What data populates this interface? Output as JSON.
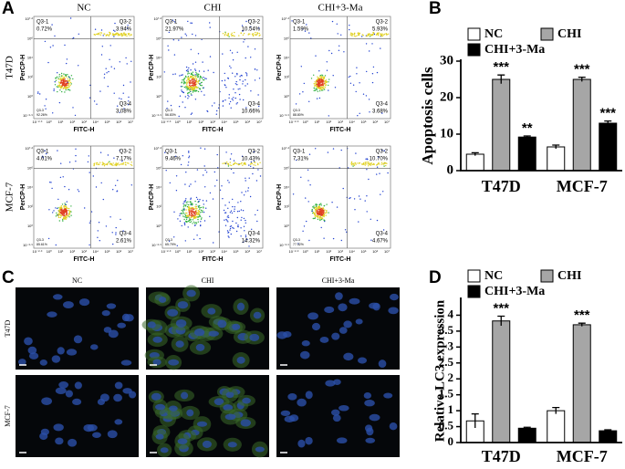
{
  "panel_letters": [
    "A",
    "B",
    "C",
    "D"
  ],
  "flow_panel": {
    "columns": [
      "NC",
      "CHI",
      "CHI+3-Ma"
    ],
    "rows": [
      "T47D",
      "MCF-7"
    ],
    "x_axis_label": "FITC-H",
    "y_axis_label": "PerCP-H",
    "x_tick_labels": [
      "10⁻²·⁹",
      "10⁰",
      "10¹",
      "10²",
      "10³",
      "10⁴",
      "10⁵",
      "10⁶",
      "10⁷"
    ],
    "y_tick_labels": [
      "10⁻²·⁹",
      "10⁰",
      "10²",
      "10⁴",
      "10⁶",
      "10⁷·²"
    ],
    "quadrant_names": [
      "Q3-1",
      "Q3-2",
      "Q3-3",
      "Q3-4"
    ],
    "plots": [
      [
        [
          "0.72%",
          "3.94%",
          "92.26%",
          "3.08%"
        ],
        [
          "21.97%",
          "10.54%",
          "56.83%",
          "10.66%"
        ],
        [
          "1.59%",
          "5.93%",
          "88.80%",
          "3.68%"
        ]
      ],
      [
        [
          "4.61%",
          "7.17%",
          "85.61%",
          "2.61%"
        ],
        [
          "9.46%",
          "10.43%",
          "65.79%",
          "14.32%"
        ],
        [
          "7.31%",
          "10.70%",
          "77.32%",
          "4.67%"
        ]
      ]
    ]
  },
  "image_panel": {
    "columns": [
      "NC",
      "CHI",
      "CHI+3-Ma"
    ],
    "rows": [
      "T47D",
      "MCF-7"
    ]
  },
  "chart_data": [
    {
      "type": "bar",
      "y_axis_label": "Apoptosis cells",
      "categories": [
        "T47D",
        "MCF-7"
      ],
      "ylim": [
        0,
        30
      ],
      "yticks": [
        0,
        10,
        20,
        30
      ],
      "series": [
        {
          "name": "NC",
          "color": "#ffffff",
          "values": [
            4.5,
            6.5
          ],
          "errors": [
            0.4,
            0.5
          ],
          "annotations": [
            null,
            null
          ]
        },
        {
          "name": "CHI",
          "color": "#a6a6a6",
          "values": [
            25,
            25
          ],
          "errors": [
            1.2,
            0.6
          ],
          "annotations": [
            "***",
            "***"
          ]
        },
        {
          "name": "CHI+3-Ma",
          "color": "#000000",
          "values": [
            9.2,
            13
          ],
          "errors": [
            0.3,
            0.6
          ],
          "annotations": [
            "**",
            "***"
          ]
        }
      ]
    },
    {
      "type": "bar",
      "y_axis_label": "Relative LC3 expression",
      "categories": [
        "T47D",
        "MCF-7"
      ],
      "ylim": [
        0,
        4.5
      ],
      "yticks": [
        0,
        0.5,
        1,
        1.5,
        2,
        2.5,
        3,
        3.5,
        4
      ],
      "series": [
        {
          "name": "NC",
          "color": "#ffffff",
          "values": [
            0.68,
            1.0
          ],
          "errors": [
            0.22,
            0.1
          ],
          "annotations": [
            null,
            null
          ]
        },
        {
          "name": "CHI",
          "color": "#a6a6a6",
          "values": [
            3.82,
            3.7
          ],
          "errors": [
            0.15,
            0.05
          ],
          "annotations": [
            "***",
            "***"
          ]
        },
        {
          "name": "CHI+3-Ma",
          "color": "#000000",
          "values": [
            0.45,
            0.37
          ],
          "errors": [
            0.03,
            0.03
          ],
          "annotations": [
            null,
            null
          ]
        }
      ]
    }
  ]
}
